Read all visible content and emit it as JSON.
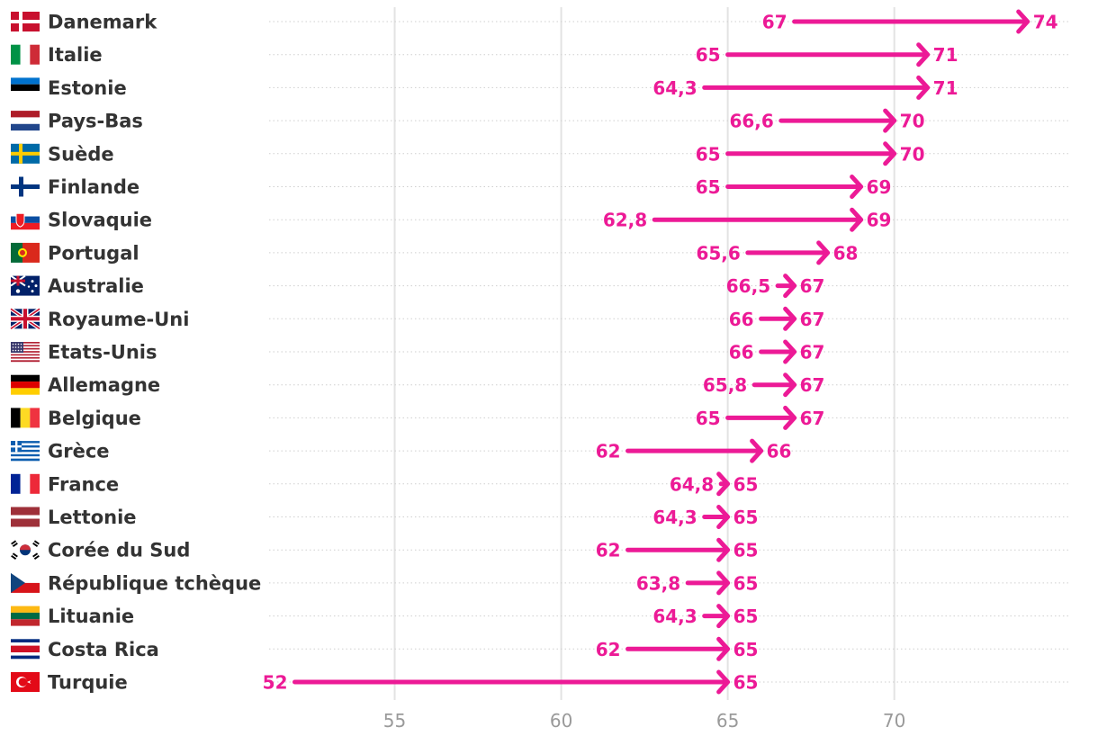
{
  "accent": "#ec1a96",
  "chart_data": {
    "type": "arrow-dumbbell",
    "xlim": [
      51.5,
      74.9
    ],
    "xticks": [
      55,
      60,
      65,
      70
    ],
    "xtick_labels": [
      "55",
      "60",
      "65",
      "70"
    ],
    "grid": true,
    "rows": [
      {
        "country": "Danemark",
        "start": 67,
        "end": 74,
        "start_label": "67",
        "end_label": "74",
        "flag": "dk"
      },
      {
        "country": "Italie",
        "start": 65,
        "end": 71,
        "start_label": "65",
        "end_label": "71",
        "flag": "it"
      },
      {
        "country": "Estonie",
        "start": 64.3,
        "end": 71,
        "start_label": "64,3",
        "end_label": "71",
        "flag": "ee"
      },
      {
        "country": "Pays-Bas",
        "start": 66.6,
        "end": 70,
        "start_label": "66,6",
        "end_label": "70",
        "flag": "nl"
      },
      {
        "country": "Suède",
        "start": 65,
        "end": 70,
        "start_label": "65",
        "end_label": "70",
        "flag": "se"
      },
      {
        "country": "Finlande",
        "start": 65,
        "end": 69,
        "start_label": "65",
        "end_label": "69",
        "flag": "fi"
      },
      {
        "country": "Slovaquie",
        "start": 62.8,
        "end": 69,
        "start_label": "62,8",
        "end_label": "69",
        "flag": "sk"
      },
      {
        "country": "Portugal",
        "start": 65.6,
        "end": 68,
        "start_label": "65,6",
        "end_label": "68",
        "flag": "pt"
      },
      {
        "country": "Australie",
        "start": 66.5,
        "end": 67,
        "start_label": "66,5",
        "end_label": "67",
        "flag": "au"
      },
      {
        "country": "Royaume-Uni",
        "start": 66,
        "end": 67,
        "start_label": "66",
        "end_label": "67",
        "flag": "gb"
      },
      {
        "country": "Etats-Unis",
        "start": 66,
        "end": 67,
        "start_label": "66",
        "end_label": "67",
        "flag": "us"
      },
      {
        "country": "Allemagne",
        "start": 65.8,
        "end": 67,
        "start_label": "65,8",
        "end_label": "67",
        "flag": "de"
      },
      {
        "country": "Belgique",
        "start": 65,
        "end": 67,
        "start_label": "65",
        "end_label": "67",
        "flag": "be"
      },
      {
        "country": "Grèce",
        "start": 62,
        "end": 66,
        "start_label": "62",
        "end_label": "66",
        "flag": "gr"
      },
      {
        "country": "France",
        "start": 64.8,
        "end": 65,
        "start_label": "64,8",
        "end_label": "65",
        "flag": "fr"
      },
      {
        "country": "Lettonie",
        "start": 64.3,
        "end": 65,
        "start_label": "64,3",
        "end_label": "65",
        "flag": "lv"
      },
      {
        "country": "Corée du Sud",
        "start": 62,
        "end": 65,
        "start_label": "62",
        "end_label": "65",
        "flag": "kr"
      },
      {
        "country": "République tchèque",
        "start": 63.8,
        "end": 65,
        "start_label": "63,8",
        "end_label": "65",
        "flag": "cz"
      },
      {
        "country": "Lituanie",
        "start": 64.3,
        "end": 65,
        "start_label": "64,3",
        "end_label": "65",
        "flag": "lt"
      },
      {
        "country": "Costa Rica",
        "start": 62,
        "end": 65,
        "start_label": "62",
        "end_label": "65",
        "flag": "cr"
      },
      {
        "country": "Turquie",
        "start": 52,
        "end": 65,
        "start_label": "52",
        "end_label": "65",
        "flag": "tr"
      }
    ]
  }
}
